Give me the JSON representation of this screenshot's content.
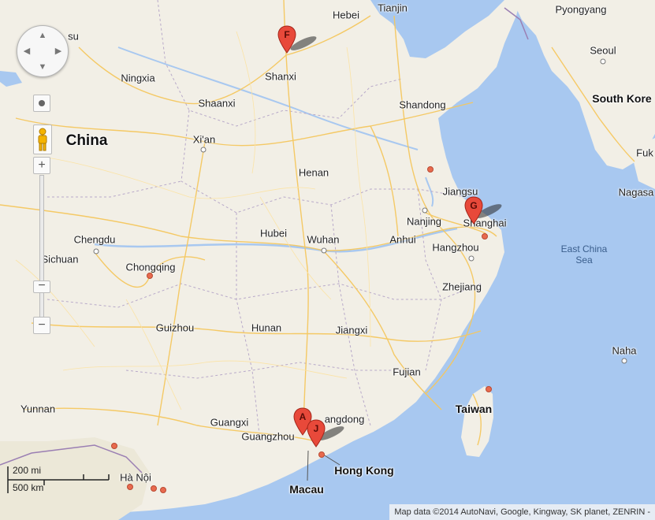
{
  "map": {
    "labels": {
      "hebei": "Hebei",
      "tianjin": "Tianjin",
      "pyongyang": "Pyongyang",
      "su": "su",
      "ningxia": "Ningxia",
      "shanxi": "Shanxi",
      "seoul": "Seoul",
      "south_korea": "South Kore",
      "shaanxi": "Shaanxi",
      "shandong": "Shandong",
      "china": "China",
      "xian": "Xi'an",
      "fuk": "Fuk",
      "henan": "Henan",
      "jiangsu": "Jiangsu",
      "nagasa": "Nagasa",
      "nanjing": "Nanjing",
      "shanghai": "Shanghai",
      "chengdu": "Chengdu",
      "hubei": "Hubei",
      "wuhan": "Wuhan",
      "anhui": "Anhui",
      "sichuan": "Sichuan",
      "hangzhou": "Hangzhou",
      "east_china_sea": "East China Sea",
      "chongqing": "Chongqing",
      "zhejiang": "Zhejiang",
      "guizhou": "Guizhou",
      "hunan": "Hunan",
      "jiangxi": "Jiangxi",
      "naha": "Naha",
      "fujian": "Fujian",
      "yunnan": "Yunnan",
      "taiwan": "Taiwan",
      "guangxi": "Guangxi",
      "guangdong": "angdong",
      "guangzhou": "Guangzhou",
      "hong_kong": "Hong Kong",
      "hanoi": "Hà Nội",
      "macau": "Macau"
    },
    "markers": {
      "f": "F",
      "g": "G",
      "a": "A",
      "j": "J"
    },
    "colors": {
      "water": "#a8c8f0",
      "land": "#f2efe6",
      "marker": "#e8493a",
      "roads": "#f5c75f"
    }
  },
  "controls": {
    "zoom_in": "+",
    "zoom_out": "−",
    "zoom_out_2": "−",
    "pan_up": "▲",
    "pan_down": "▼",
    "pan_left": "◀",
    "pan_right": "▶"
  },
  "scale": {
    "miles": "200 mi",
    "km": "500 km"
  },
  "attribution": "Map data ©2014 AutoNavi, Google, Kingway, SK planet, ZENRIN -"
}
